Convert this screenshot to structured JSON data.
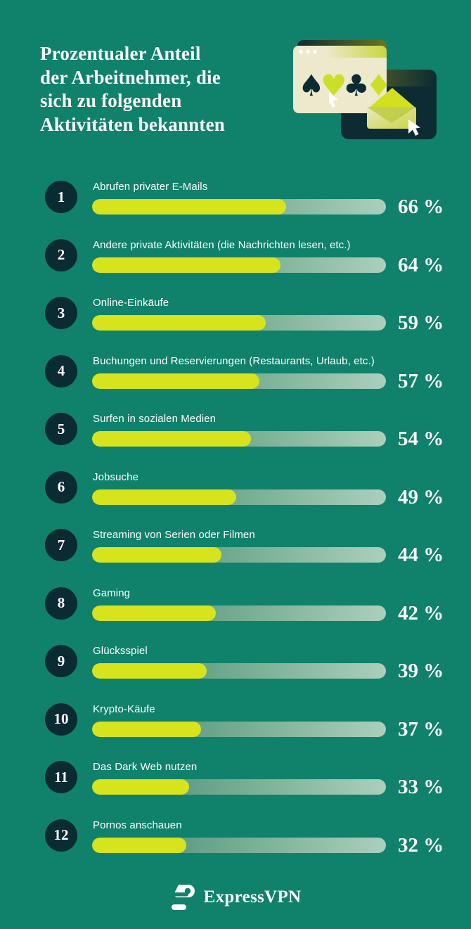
{
  "header": {
    "title": "Prozentualer Anteil\nder Arbeitnehmer, die\nsich zu folgenden\nAktivitäten bekannten"
  },
  "illustration": {
    "icons": [
      "browser-window-icon",
      "spade-icon",
      "heart-icon",
      "club-icon",
      "diamond-icon",
      "cursor-icon",
      "dark-card-icon",
      "envelope-icon",
      "cursor-icon"
    ]
  },
  "chart_data": {
    "type": "bar",
    "orientation": "horizontal",
    "title": "Prozentualer Anteil der Arbeitnehmer, die sich zu folgenden Aktivitäten bekannten",
    "categories": [
      "Abrufen privater E-Mails",
      "Andere private Aktivitäten (die Nachrichten lesen, etc.)",
      "Online-Einkäufe",
      "Buchungen und Reservierungen (Restaurants, Urlaub, etc.)",
      "Surfen in sozialen Medien",
      "Jobsuche",
      "Streaming von Serien oder Filmen",
      "Gaming",
      "Glücksspiel",
      "Krypto-Käufe",
      "Das Dark Web nutzen",
      "Pornos anschauen"
    ],
    "values": [
      66,
      64,
      59,
      57,
      54,
      49,
      44,
      42,
      39,
      37,
      33,
      32
    ],
    "value_suffix": " %",
    "xlim": [
      0,
      100
    ],
    "grid": false,
    "legend": false
  },
  "rows": [
    {
      "rank": "1",
      "label": "Abrufen privater E-Mails",
      "value": 66,
      "display": "66 %"
    },
    {
      "rank": "2",
      "label": "Andere private Aktivitäten (die Nachrichten lesen, etc.)",
      "value": 64,
      "display": "64 %"
    },
    {
      "rank": "3",
      "label": "Online-Einkäufe",
      "value": 59,
      "display": "59 %"
    },
    {
      "rank": "4",
      "label": "Buchungen und Reservierungen (Restaurants, Urlaub, etc.)",
      "value": 57,
      "display": "57 %"
    },
    {
      "rank": "5",
      "label": "Surfen in sozialen Medien",
      "value": 54,
      "display": "54 %"
    },
    {
      "rank": "6",
      "label": "Jobsuche",
      "value": 49,
      "display": "49 %"
    },
    {
      "rank": "7",
      "label": "Streaming von Serien oder Filmen",
      "value": 44,
      "display": "44 %"
    },
    {
      "rank": "8",
      "label": "Gaming",
      "value": 42,
      "display": "42 %"
    },
    {
      "rank": "9",
      "label": "Glücksspiel",
      "value": 39,
      "display": "39 %"
    },
    {
      "rank": "10",
      "label": "Krypto-Käufe",
      "value": 37,
      "display": "37 %"
    },
    {
      "rank": "11",
      "label": "Das Dark Web nutzen",
      "value": 33,
      "display": "33 %"
    },
    {
      "rank": "12",
      "label": "Pornos anschauen",
      "value": 32,
      "display": "32 %"
    }
  ],
  "footer": {
    "brand": "ExpressVPN"
  },
  "colors": {
    "background": "#10816B",
    "bar_fill": "#D7E31D",
    "badge": "#0B2B33",
    "track_gradient_start": "#3F8A72",
    "track_gradient_end": "#ABCFBB",
    "text": "#FFFFFF",
    "illustration_cream": "#EDE9CC",
    "illustration_lime": "#CCDF26",
    "illustration_navy": "#0C2B33"
  }
}
